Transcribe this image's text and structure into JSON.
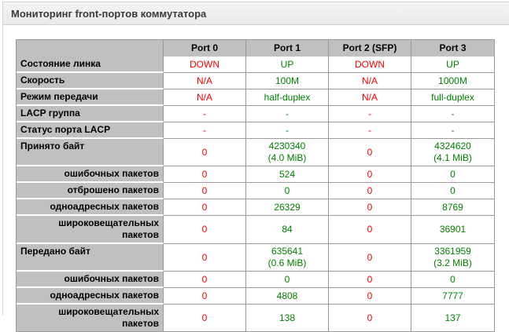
{
  "panel": {
    "title": "Мониторинг front-портов коммутатора"
  },
  "table": {
    "corner_label": "",
    "ports": [
      {
        "label": "Port 0",
        "status": "down"
      },
      {
        "label": "Port 1",
        "status": "up"
      },
      {
        "label": "Port 2 (SFP)",
        "status": "down"
      },
      {
        "label": "Port 3",
        "status": "up"
      }
    ],
    "status_colors": {
      "up": "#008000",
      "down": "#ff0000"
    },
    "rows": [
      {
        "label": "Состояние линка",
        "indent": false,
        "values": [
          "DOWN",
          "UP",
          "DOWN",
          "UP"
        ]
      },
      {
        "label": "Скорость",
        "indent": false,
        "values": [
          "N/A",
          "100M",
          "N/A",
          "1000M"
        ]
      },
      {
        "label": "Режим передачи",
        "indent": false,
        "values": [
          "N/A",
          "half-duplex",
          "N/A",
          "full-duplex"
        ]
      },
      {
        "label": "LACP группа",
        "indent": false,
        "values": [
          "-",
          "-",
          "-",
          "-"
        ]
      },
      {
        "label": "Статус порта LACP",
        "indent": false,
        "values": [
          "-",
          "-",
          "-",
          "-"
        ]
      },
      {
        "label": "Принято байт",
        "indent": false,
        "values": [
          "0",
          "4230340\n(4.0 MiB)",
          "0",
          "4324620\n(4.1 MiB)"
        ]
      },
      {
        "label": "ошибочных пакетов",
        "indent": true,
        "values": [
          "0",
          "524",
          "0",
          "0"
        ]
      },
      {
        "label": "отброшено пакетов",
        "indent": true,
        "values": [
          "0",
          "0",
          "0",
          "0"
        ]
      },
      {
        "label": "одноадресных пакетов",
        "indent": true,
        "values": [
          "0",
          "26329",
          "0",
          "8769"
        ]
      },
      {
        "label": "широковещательных пакетов",
        "indent": true,
        "values": [
          "0",
          "84",
          "0",
          "36901"
        ]
      },
      {
        "label": "Передано байт",
        "indent": false,
        "values": [
          "0",
          "635641\n(0.6 MiB)",
          "0",
          "3361959\n(3.2 MiB)"
        ]
      },
      {
        "label": "ошибочных пакетов",
        "indent": true,
        "values": [
          "0",
          "0",
          "0",
          "0"
        ]
      },
      {
        "label": "одноадресных пакетов",
        "indent": true,
        "values": [
          "0",
          "4808",
          "0",
          "7777"
        ]
      },
      {
        "label": "широковещательных пакетов",
        "indent": true,
        "values": [
          "0",
          "138",
          "0",
          "137"
        ]
      }
    ]
  }
}
